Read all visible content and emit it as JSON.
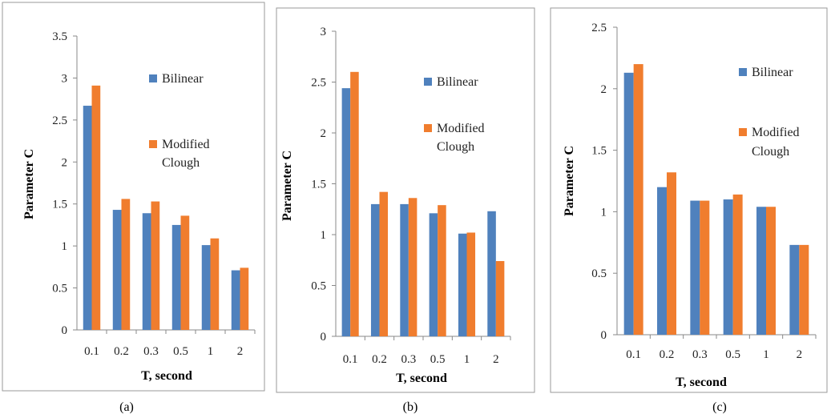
{
  "chart_data": [
    {
      "type": "bar",
      "caption": "(a)",
      "categories": [
        "0.1",
        "0.2",
        "0.3",
        "0.5",
        "1",
        "2"
      ],
      "series": [
        {
          "name": "Bilinear",
          "values": [
            2.67,
            1.43,
            1.39,
            1.25,
            1.01,
            0.71
          ]
        },
        {
          "name": "Modified Clough",
          "values": [
            2.91,
            1.56,
            1.53,
            1.36,
            1.09,
            0.74
          ]
        }
      ],
      "xlabel": "T, second",
      "ylabel": "Parameter C",
      "ylim": [
        0,
        3.5
      ],
      "yticks": [
        "0",
        "0.5",
        "1",
        "1.5",
        "2",
        "2.5",
        "3",
        "3.5"
      ],
      "grid": false,
      "legend": "right",
      "legend_labels": [
        [
          "Bilinear"
        ],
        [
          "Modified",
          "Clough"
        ]
      ]
    },
    {
      "type": "bar",
      "caption": "(b)",
      "categories": [
        "0.1",
        "0.2",
        "0.3",
        "0.5",
        "1",
        "2"
      ],
      "series": [
        {
          "name": "Bilinear",
          "values": [
            2.44,
            1.3,
            1.3,
            1.21,
            1.01,
            1.23
          ]
        },
        {
          "name": "Modified Clough",
          "values": [
            2.6,
            1.42,
            1.36,
            1.29,
            1.02,
            0.74
          ]
        }
      ],
      "xlabel": "T, second",
      "ylabel": "Parameter C",
      "ylim": [
        0,
        3
      ],
      "yticks": [
        "0",
        "0.5",
        "1",
        "1.5",
        "2",
        "2.5",
        "3"
      ],
      "grid": false,
      "legend": "right",
      "legend_labels": [
        [
          "Bilinear"
        ],
        [
          "Modified",
          "Clough"
        ]
      ]
    },
    {
      "type": "bar",
      "caption": "(c)",
      "categories": [
        "0.1",
        "0.2",
        "0.3",
        "0.5",
        "1",
        "2"
      ],
      "series": [
        {
          "name": "Bilinear",
          "values": [
            2.13,
            1.2,
            1.09,
            1.1,
            1.04,
            0.73
          ]
        },
        {
          "name": "Modified Clough",
          "values": [
            2.2,
            1.32,
            1.09,
            1.14,
            1.04,
            0.73
          ]
        }
      ],
      "xlabel": "T, second",
      "ylabel": "Parameter C",
      "ylim": [
        0,
        2.5
      ],
      "yticks": [
        "0",
        "0.5",
        "1",
        "1.5",
        "2",
        "2.5"
      ],
      "grid": false,
      "legend": "right",
      "legend_labels": [
        [
          "Bilinear"
        ],
        [
          "Modified",
          "Clough"
        ]
      ]
    }
  ],
  "colors": {
    "bilinear": "#4F81BD",
    "modified_clough": "#F07D2E",
    "axis": "#888888",
    "border": "#9a9a9a"
  }
}
